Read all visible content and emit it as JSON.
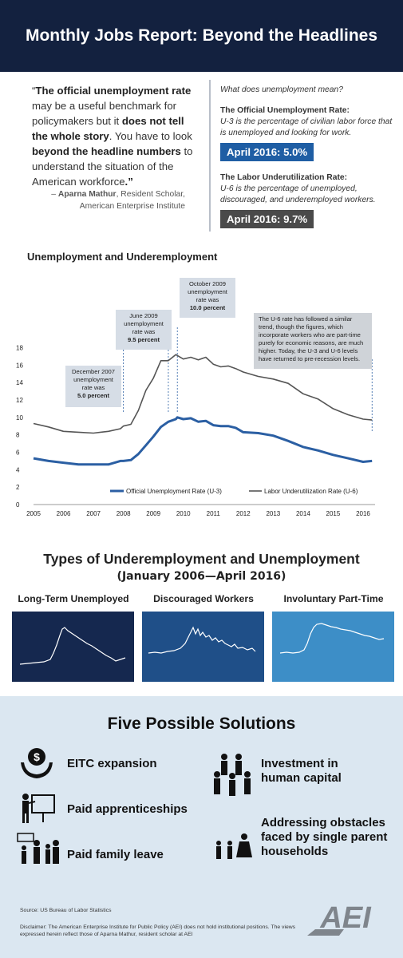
{
  "header": {
    "title": "Monthly Jobs Report: Beyond the Headlines"
  },
  "quote": {
    "open": "“",
    "p1": "The official unemployment rate",
    "p2": " may be a useful benchmark for policymakers but it ",
    "p3": "does not tell the whole story",
    "p4": ". You have to look ",
    "p5": "beyond the headline numbers",
    "p6": " to understand the situation of the American workforce",
    "p7": ".”",
    "dash": "– ",
    "author": "Aparna Mathur",
    "role": ", Resident Scholar,",
    "org": "American Enterprise Institute"
  },
  "definitions": {
    "question": "What does unemployment mean?",
    "u3_heading": "The Official Unemployment Rate:",
    "u3_text": "U-3 is the percentage of civilian labor force that is unemployed and looking for work.",
    "u3_badge": "April 2016: 5.0%",
    "u6_heading": "The Labor Underutilization Rate:",
    "u6_text": "U-6 is the percentage of unemployed, discouraged, and underemployed workers.",
    "u6_badge": "April 2016: 9.7%"
  },
  "chart_title": "Unemployment and Underemployment",
  "chart_data": {
    "type": "line",
    "x": [
      2005.0,
      2005.5,
      2006.0,
      2006.5,
      2007.0,
      2007.5,
      2007.9,
      2008.0,
      2008.25,
      2008.5,
      2008.75,
      2009.0,
      2009.25,
      2009.5,
      2009.75,
      2009.8,
      2010.0,
      2010.25,
      2010.5,
      2010.75,
      2011.0,
      2011.25,
      2011.5,
      2011.75,
      2012.0,
      2012.5,
      2013.0,
      2013.5,
      2014.0,
      2014.5,
      2015.0,
      2015.5,
      2016.0,
      2016.3
    ],
    "series": [
      {
        "name": "Official Unemployment Rate (U-3)",
        "color": "#2b5fa3",
        "values": [
          5.3,
          5.0,
          4.8,
          4.6,
          4.6,
          4.6,
          5.0,
          5.0,
          5.1,
          5.8,
          6.8,
          7.8,
          8.9,
          9.5,
          9.8,
          10.0,
          9.8,
          9.9,
          9.5,
          9.6,
          9.1,
          9.0,
          9.0,
          8.8,
          8.3,
          8.2,
          7.9,
          7.3,
          6.6,
          6.2,
          5.7,
          5.3,
          4.9,
          5.0
        ]
      },
      {
        "name": "Labor Underutilization Rate (U-6)",
        "color": "#555555",
        "values": [
          9.3,
          8.9,
          8.4,
          8.3,
          8.2,
          8.4,
          8.7,
          9.0,
          9.2,
          10.8,
          13.1,
          14.5,
          16.5,
          16.5,
          17.2,
          17.1,
          16.7,
          16.9,
          16.6,
          16.9,
          16.1,
          15.8,
          15.9,
          15.6,
          15.2,
          14.7,
          14.4,
          13.9,
          12.7,
          12.1,
          11.0,
          10.3,
          9.8,
          9.7
        ]
      }
    ],
    "xticks": [
      2005,
      2006,
      2007,
      2008,
      2009,
      2010,
      2011,
      2012,
      2013,
      2014,
      2015,
      2016
    ],
    "yticks": [
      0,
      2,
      4,
      6,
      8,
      10,
      12,
      14,
      16,
      18
    ],
    "xlim": [
      2005,
      2016.4
    ],
    "ylim": [
      0,
      18.5
    ],
    "annotations": [
      {
        "x": 2008.0,
        "lines": [
          "December 2007",
          "unemployment",
          "rate was"
        ],
        "bold": "5.0 percent"
      },
      {
        "x": 2009.5,
        "lines": [
          "June 2009",
          "unemployment",
          "rate was"
        ],
        "bold": "9.5 percent"
      },
      {
        "x": 2009.8,
        "lines": [
          "October 2009",
          "unemployment",
          "rate was"
        ],
        "bold": "10.0 percent"
      },
      {
        "x": 2016.3,
        "lines": [
          "The U-6 rate has followed a similar",
          "trend, though the figures, which",
          "incorporate workers who are part-time",
          "purely for economic reasons, are much",
          "higher. Today, the U-3 and U-6 levels",
          "have returned to pre-recession levels."
        ],
        "bold": ""
      }
    ]
  },
  "types": {
    "title": "Types of Underemployment and Unemployment",
    "subtitle": "(January 2006—April 2016)",
    "panels": [
      {
        "label": "Long-Term Unemployed",
        "bg": "#15284f"
      },
      {
        "label": "Discouraged Workers",
        "bg": "#1f4f88"
      },
      {
        "label": "Involuntary Part-Time",
        "bg": "#3d8ec7"
      }
    ]
  },
  "solutions": {
    "title": "Five Possible Solutions",
    "items": [
      "EITC expansion",
      "Paid apprenticeships",
      "Paid family leave",
      "Investment in human capital",
      "Addressing obstacles faced by single parent households"
    ]
  },
  "footer": {
    "source": "Source: US Bureau of Labor Statistics",
    "disclaimer": "Disclaimer: The American Enterprise Institute for Public Policy (AEI) does not hold institutional positions. The views expressed herein reflect those of Aparna Mathur, resident scholar at AEI",
    "logo_text": "AEI"
  }
}
